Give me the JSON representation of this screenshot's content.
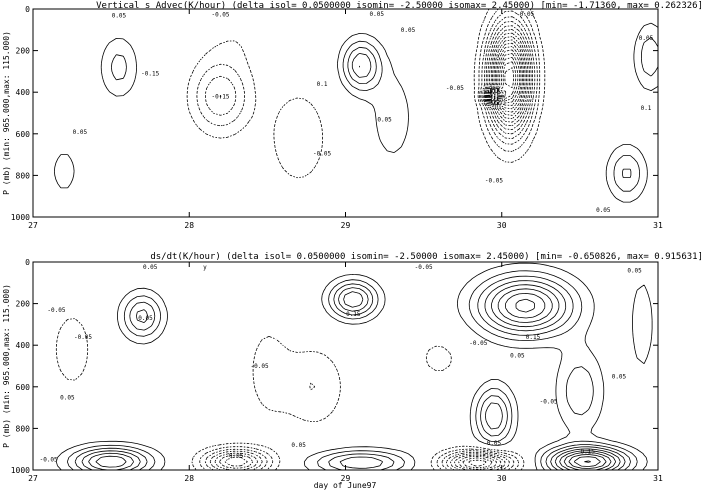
{
  "chart_data": [
    {
      "type": "contour",
      "title": "Vertical s Advec(K/hour)  (delta isol= 0.0500000  isomin= -2.50000  isomax= 2.45000) [min= -1.71360, max= 0.262326]",
      "xlabel": "",
      "ylabel": "P (mb)  (min: 965.000,max: 115.000)",
      "xlim": [
        27,
        31
      ],
      "ylim": [
        1000,
        0
      ],
      "xticks": [
        "27",
        "28",
        "29",
        "30",
        "31"
      ],
      "yticks": [
        "0",
        "200",
        "400",
        "600",
        "800",
        "1000"
      ],
      "contour_interval": 0.05,
      "min": -1.7136,
      "max": 0.262326,
      "contour_labels": [
        {
          "text": "0.05",
          "x": 27.55,
          "p": 40
        },
        {
          "text": "-0.05",
          "x": 28.2,
          "p": 35
        },
        {
          "text": "0.05",
          "x": 29.2,
          "p": 25
        },
        {
          "text": "0.05",
          "x": 29.4,
          "p": 110
        },
        {
          "text": "-0.05",
          "x": 30.15,
          "p": 30
        },
        {
          "text": "-0.15",
          "x": 27.75,
          "p": 320
        },
        {
          "text": "-0.15",
          "x": 28.2,
          "p": 430
        },
        {
          "text": "-0.05",
          "x": 28.85,
          "p": 705
        },
        {
          "text": "0.05",
          "x": 27.3,
          "p": 600
        },
        {
          "text": "0.1",
          "x": 28.85,
          "p": 370
        },
        {
          "text": "0.05",
          "x": 29.25,
          "p": 540
        },
        {
          "text": "-0.05",
          "x": 29.95,
          "p": 835
        },
        {
          "text": "-0.05",
          "x": 29.7,
          "p": 390
        },
        {
          "text": "0.05",
          "x": 30.65,
          "p": 975
        },
        {
          "text": "0.1",
          "x": 31.0,
          "p": 485
        },
        {
          "text": "0.05",
          "x": 30.97,
          "p": 150
        }
      ]
    },
    {
      "type": "contour",
      "title": "ds/dt(K/hour)  (delta isol= 0.0500000  isomin= -2.50000  isomax= 2.45000) [min= -0.650826, max= 0.915631]",
      "xlabel": "day of June97",
      "ylabel": "P (mb)  (min: 965.000,max: 115.000)",
      "xlim": [
        27,
        31
      ],
      "ylim": [
        1000,
        0
      ],
      "xticks": [
        "27",
        "28",
        "29",
        "30",
        "31"
      ],
      "yticks": [
        "0",
        "200",
        "400",
        "600",
        "800",
        "1000"
      ],
      "contour_interval": 0.05,
      "min": -0.650826,
      "max": 0.915631,
      "contour_labels": [
        {
          "text": "0.05",
          "x": 27.75,
          "p": 30
        },
        {
          "text": "-0.05",
          "x": 27.15,
          "p": 240
        },
        {
          "text": "0.05",
          "x": 27.72,
          "p": 280
        },
        {
          "text": "-0.05",
          "x": 27.32,
          "p": 370
        },
        {
          "text": "0.05",
          "x": 27.22,
          "p": 660
        },
        {
          "text": "0.15",
          "x": 29.05,
          "p": 260
        },
        {
          "text": "-0.05",
          "x": 29.5,
          "p": -5
        },
        {
          "text": "-0.05",
          "x": 28.45,
          "p": 510
        },
        {
          "text": "-0.05",
          "x": 29.85,
          "p": 400
        },
        {
          "text": "0.15",
          "x": 30.2,
          "p": 370
        },
        {
          "text": "0.05",
          "x": 30.1,
          "p": 460
        },
        {
          "text": "0.05",
          "x": 30.85,
          "p": 50
        },
        {
          "text": "-0.05",
          "x": 30.3,
          "p": 680
        },
        {
          "text": "0.05",
          "x": 30.75,
          "p": 560
        },
        {
          "text": "0.05",
          "x": 28.7,
          "p": 890
        },
        {
          "text": "0.05",
          "x": 29.95,
          "p": 880
        },
        {
          "text": "0.15",
          "x": 30.55,
          "p": 920
        },
        {
          "text": "0.05",
          "x": 28.3,
          "p": 940
        },
        {
          "text": "-0.05",
          "x": 27.1,
          "p": 960
        },
        {
          "text": "y",
          "x": 28.1,
          "p": 15
        }
      ]
    }
  ]
}
